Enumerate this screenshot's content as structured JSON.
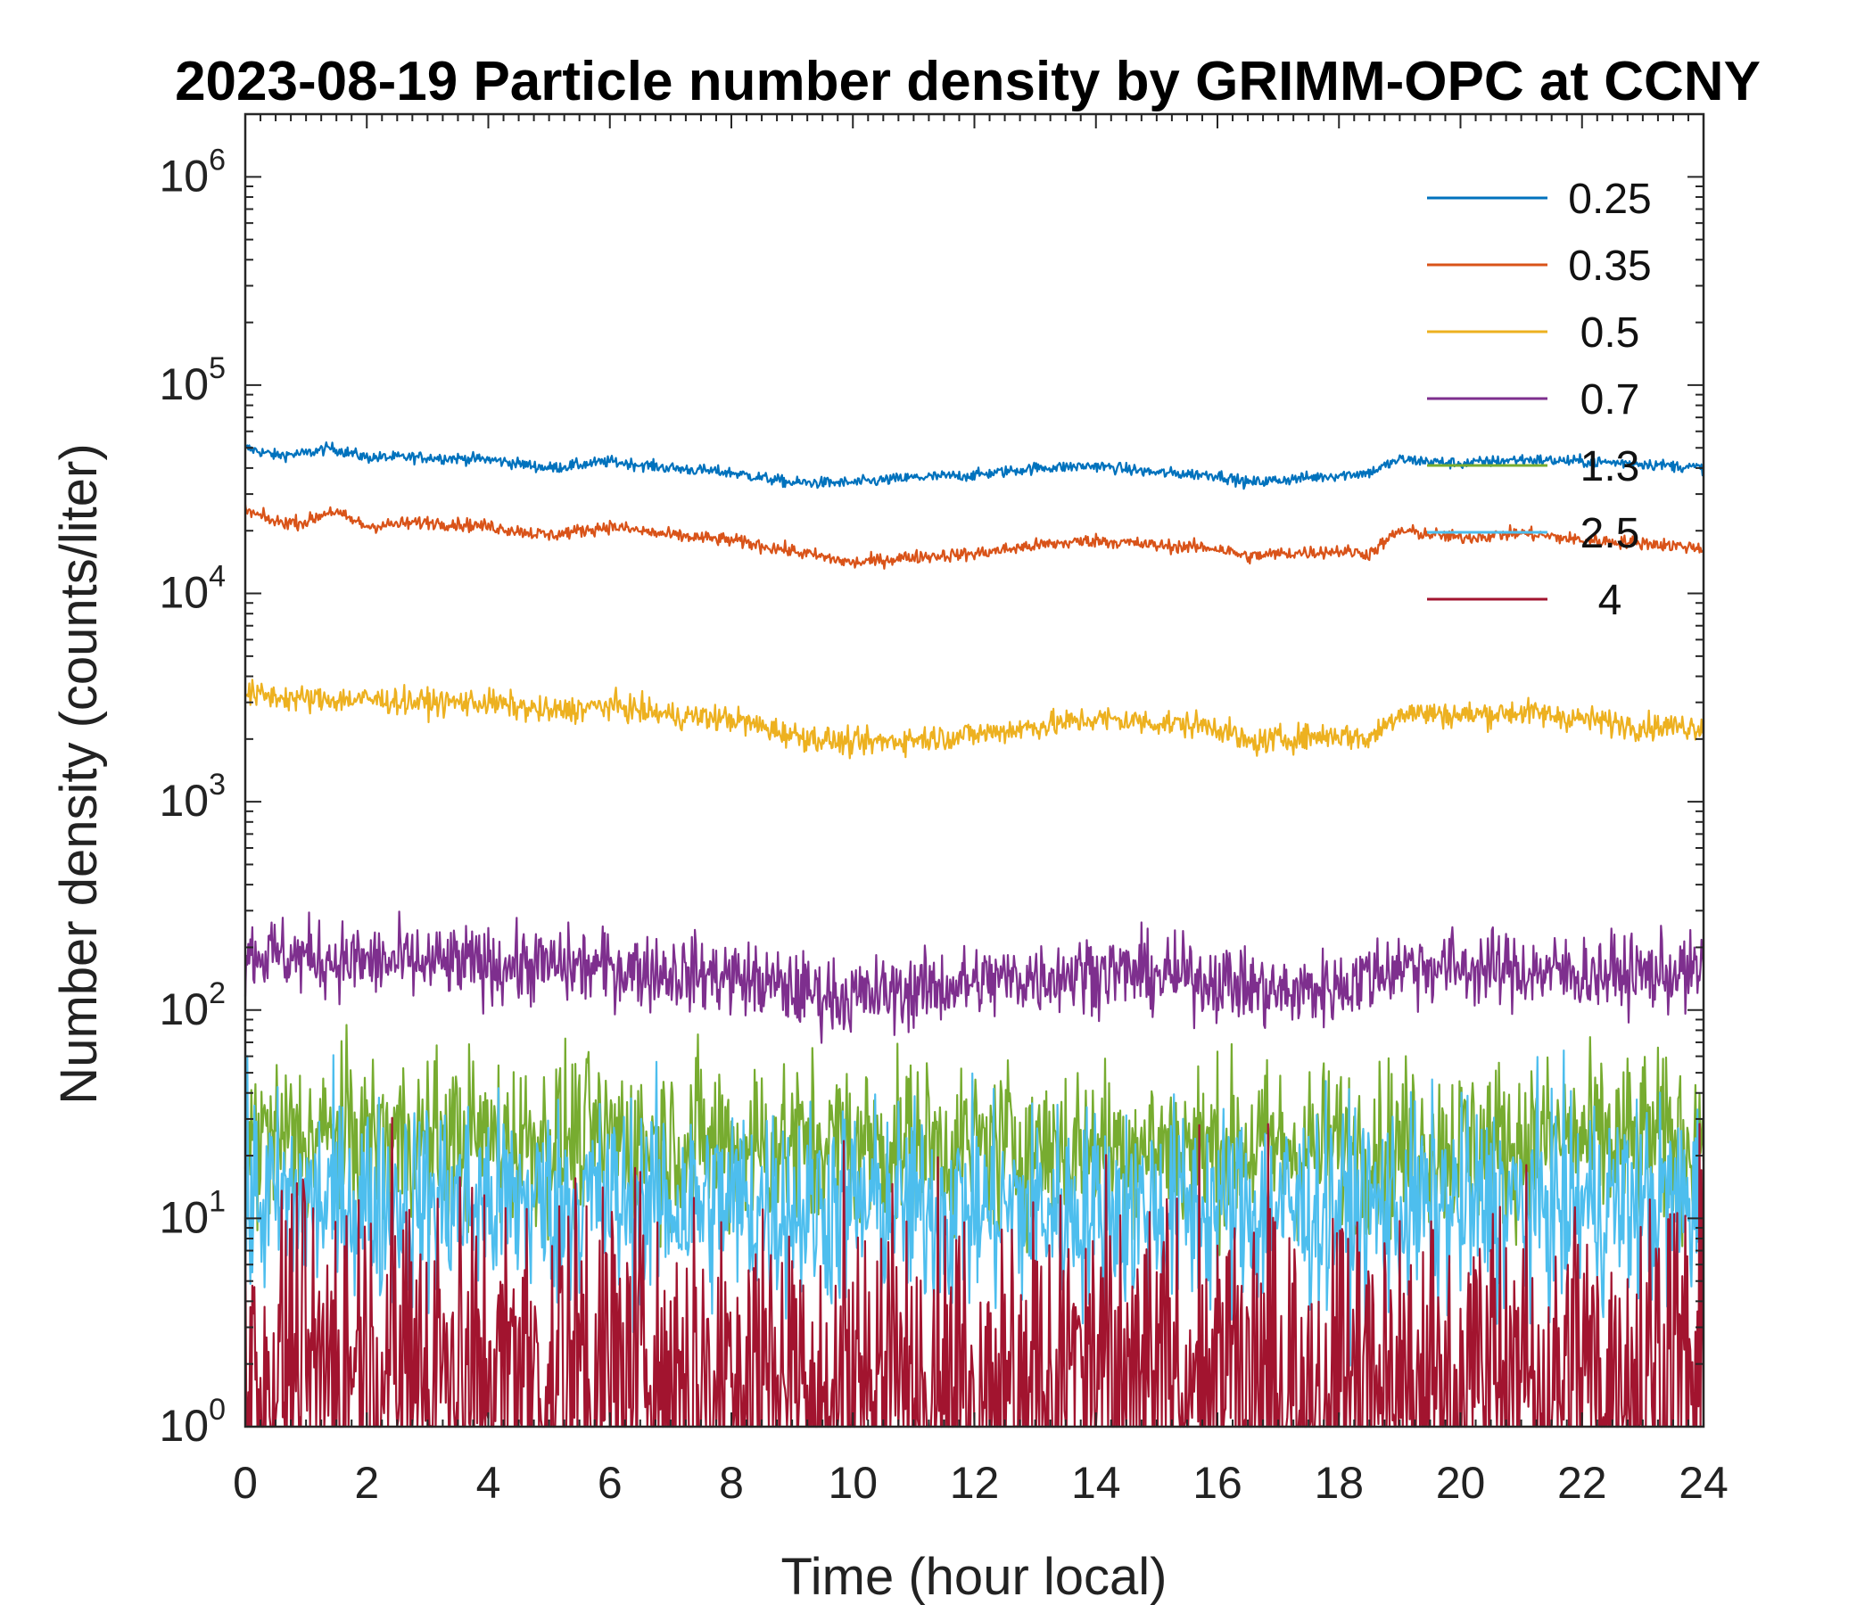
{
  "chart_data": {
    "type": "line",
    "title": "2023-08-19 Particle number density by GRIMM-OPC at CCNY",
    "xlabel": "Time (hour local)",
    "ylabel": "Number density (counts/liter)",
    "xlim": [
      0,
      24
    ],
    "ylim": [
      1,
      2000000
    ],
    "yscale": "log",
    "x_ticks": [
      0,
      2,
      4,
      6,
      8,
      10,
      12,
      14,
      16,
      18,
      20,
      22,
      24
    ],
    "y_ticks": [
      {
        "value": 1,
        "base": "10",
        "exp": "0"
      },
      {
        "value": 10,
        "base": "10",
        "exp": "1"
      },
      {
        "value": 100,
        "base": "10",
        "exp": "2"
      },
      {
        "value": 1000,
        "base": "10",
        "exp": "3"
      },
      {
        "value": 10000,
        "base": "10",
        "exp": "4"
      },
      {
        "value": 100000,
        "base": "10",
        "exp": "5"
      },
      {
        "value": 1000000,
        "base": "10",
        "exp": "6"
      }
    ],
    "grid": false,
    "legend_position": "top-right",
    "series": [
      {
        "name": "0.25",
        "color": "#0072BD",
        "noise": 0.03,
        "x": [
          0,
          0.5,
          1,
          1.4,
          2,
          3,
          4,
          5,
          6,
          7,
          8,
          9,
          10,
          11,
          12,
          13,
          14,
          15,
          16,
          16.5,
          17,
          18,
          18.5,
          19,
          20,
          21,
          22,
          23,
          24
        ],
        "values": [
          50000,
          46000,
          47000,
          50000,
          45000,
          45000,
          44000,
          40000,
          43000,
          40000,
          38000,
          34000,
          34000,
          36000,
          37000,
          40000,
          41000,
          38000,
          37000,
          34000,
          35000,
          37000,
          38000,
          44000,
          42000,
          44000,
          43000,
          42000,
          40000
        ]
      },
      {
        "name": "0.35",
        "color": "#D95319",
        "noise": 0.035,
        "x": [
          0,
          0.5,
          1,
          1.4,
          2,
          3,
          4,
          5,
          6,
          7,
          8,
          9,
          10,
          11,
          12,
          13,
          14,
          15,
          16,
          16.5,
          17,
          18,
          18.5,
          19,
          20,
          21,
          22,
          23,
          24
        ],
        "values": [
          25000,
          22000,
          22000,
          25000,
          21000,
          22000,
          21000,
          19000,
          21000,
          19000,
          18000,
          16000,
          14000,
          15000,
          15500,
          17000,
          18000,
          17000,
          16500,
          15000,
          15500,
          16000,
          15500,
          20000,
          18500,
          19500,
          18000,
          17500,
          16500
        ]
      },
      {
        "name": "0.5",
        "color": "#EDB120",
        "noise": 0.07,
        "x": [
          0,
          1,
          2,
          3,
          4,
          5,
          6,
          7,
          8,
          9,
          10,
          11,
          12,
          13,
          14,
          15,
          16,
          16.5,
          17,
          18,
          18.5,
          19,
          20,
          21,
          22,
          23,
          24
        ],
        "values": [
          3300,
          3100,
          3100,
          3000,
          3000,
          2700,
          2900,
          2600,
          2500,
          2100,
          1900,
          2000,
          2100,
          2300,
          2500,
          2400,
          2300,
          1900,
          2000,
          2100,
          2000,
          2700,
          2600,
          2700,
          2500,
          2300,
          2300
        ]
      },
      {
        "name": "0.7",
        "color": "#7E2F8E",
        "noise": 0.2,
        "x": [
          0,
          2,
          4,
          6,
          8,
          9,
          10,
          12,
          14,
          16,
          17,
          18,
          19,
          20,
          22,
          24
        ],
        "values": [
          190,
          170,
          165,
          160,
          145,
          125,
          115,
          135,
          155,
          140,
          120,
          130,
          165,
          160,
          150,
          150
        ]
      },
      {
        "name": "1.3",
        "color": "#77AC30",
        "noise": 0.45,
        "x": [
          0,
          6,
          12,
          18,
          24
        ],
        "values": [
          24,
          24,
          22,
          22,
          24
        ]
      },
      {
        "name": "2.5",
        "color": "#4DBEEE",
        "noise": 0.55,
        "x": [
          0,
          6,
          12,
          18,
          24
        ],
        "values": [
          12,
          12,
          11,
          11,
          12
        ]
      },
      {
        "name": "4",
        "color": "#A2142F",
        "noise": 0.9,
        "x": [
          0,
          6,
          12,
          18,
          24
        ],
        "values": [
          2.5,
          2.5,
          2,
          2,
          2.2
        ]
      }
    ]
  }
}
